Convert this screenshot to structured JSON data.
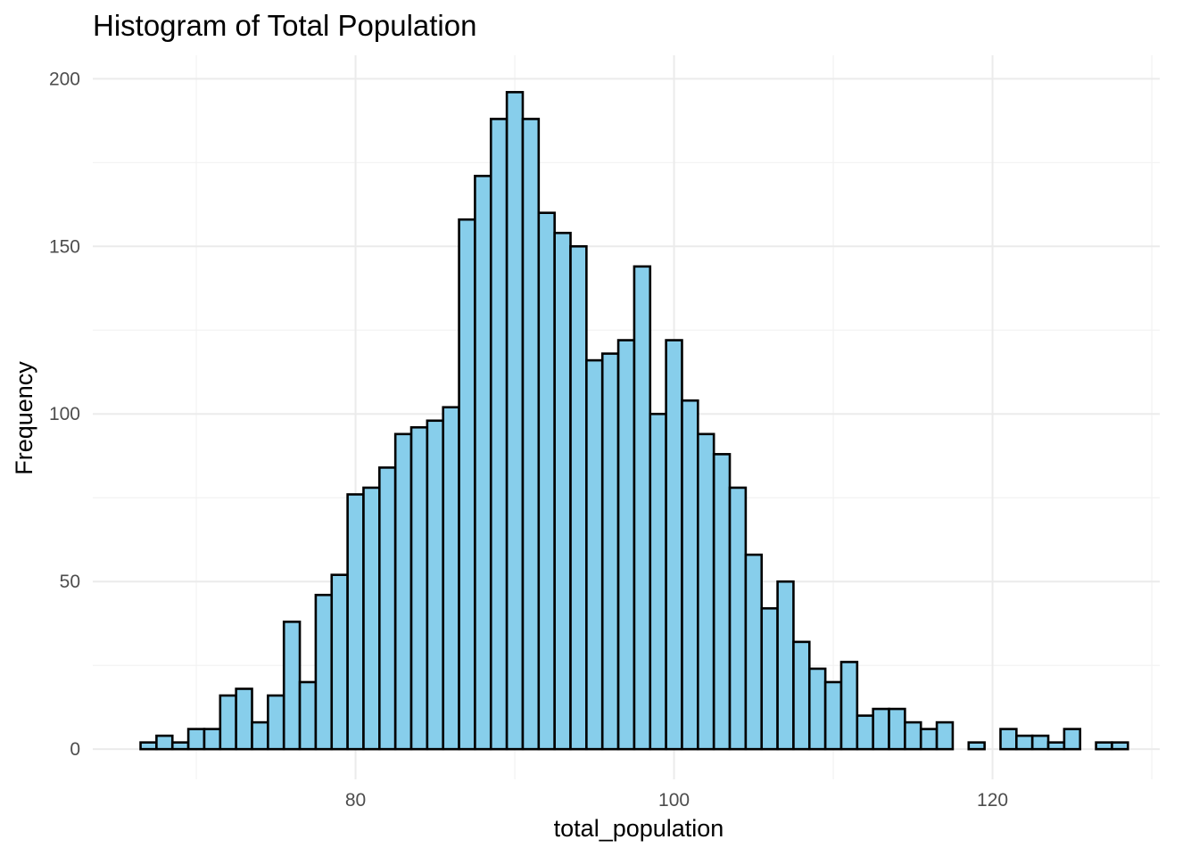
{
  "chart_data": {
    "type": "bar",
    "title": "Histogram of Total Population",
    "xlabel": "total_population",
    "ylabel": "Frequency",
    "bin_width": 1,
    "bin_centers": [
      67,
      68,
      69,
      70,
      71,
      72,
      73,
      74,
      75,
      76,
      77,
      78,
      79,
      80,
      81,
      82,
      83,
      84,
      85,
      86,
      87,
      88,
      89,
      90,
      91,
      92,
      93,
      94,
      95,
      96,
      97,
      98,
      99,
      100,
      101,
      102,
      103,
      104,
      105,
      106,
      107,
      108,
      109,
      110,
      111,
      112,
      113,
      114,
      115,
      116,
      117,
      118,
      119,
      120,
      121,
      122,
      123,
      124,
      125,
      126,
      127,
      128
    ],
    "values": [
      2,
      4,
      2,
      6,
      6,
      16,
      18,
      8,
      16,
      38,
      20,
      46,
      52,
      76,
      78,
      84,
      94,
      96,
      98,
      102,
      158,
      171,
      188,
      196,
      188,
      160,
      154,
      150,
      116,
      118,
      122,
      144,
      100,
      122,
      104,
      94,
      88,
      78,
      58,
      42,
      50,
      32,
      24,
      20,
      26,
      10,
      12,
      12,
      8,
      6,
      8,
      0,
      2,
      0,
      6,
      4,
      4,
      2,
      6,
      0,
      2,
      2
    ],
    "xlim": [
      63.5,
      130.5
    ],
    "ylim": [
      -9,
      207
    ],
    "x_ticks": [
      80,
      100,
      120
    ],
    "x_tick_labels": [
      "80",
      "100",
      "120"
    ],
    "y_ticks": [
      0,
      50,
      100,
      150,
      200
    ],
    "y_tick_labels": [
      "0",
      "50",
      "100",
      "150",
      "200"
    ],
    "fill_color": "#87CEEB",
    "grid": true,
    "theme": "minimal"
  }
}
